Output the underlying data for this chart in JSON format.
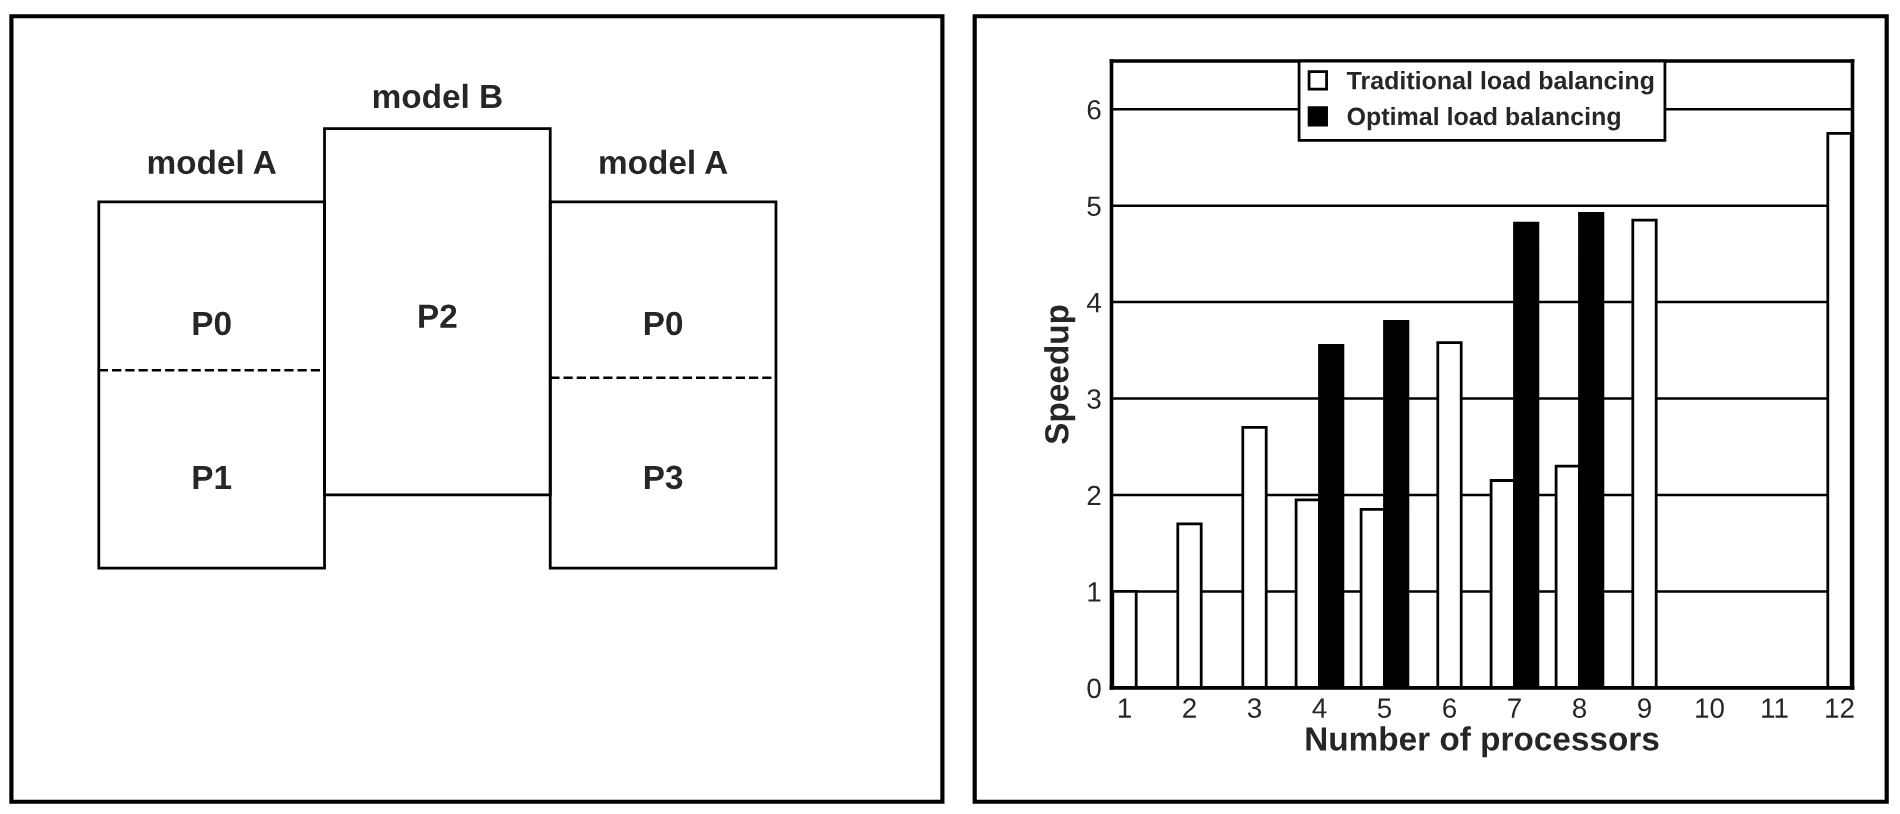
{
  "chart_data": [
    {
      "type": "other",
      "annotations": [
        "model B",
        "model A",
        "model A",
        "P0",
        "P1",
        "P2",
        "P0",
        "P3"
      ]
    },
    {
      "type": "bar",
      "xlabel": "Number of processors",
      "ylabel": "Speedup",
      "categories": [
        "1",
        "2",
        "3",
        "4",
        "5",
        "6",
        "7",
        "8",
        "9",
        "10",
        "11",
        "12"
      ],
      "series": [
        {
          "name": "Traditional load balancing",
          "color": "#ffffff",
          "values": [
            1.0,
            1.7,
            2.7,
            1.95,
            1.85,
            3.58,
            2.15,
            2.3,
            4.85,
            null,
            null,
            5.75
          ]
        },
        {
          "name": "Optimal load balancing",
          "color": "#000000",
          "values": [
            null,
            null,
            null,
            3.55,
            3.8,
            null,
            4.82,
            4.92,
            null,
            null,
            null,
            null
          ]
        }
      ],
      "ylim": [
        0,
        6.5
      ],
      "yticks": [
        0,
        1,
        2,
        3,
        4,
        5,
        6
      ],
      "grid": "y",
      "legend": "top"
    }
  ]
}
